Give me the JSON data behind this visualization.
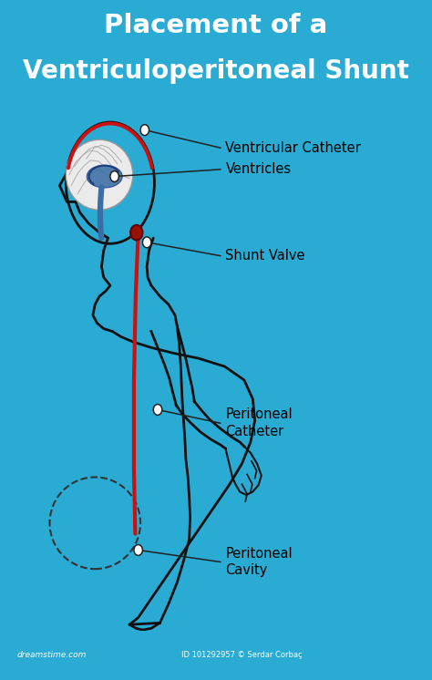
{
  "title_line1": "Placement of a",
  "title_line2": "Ventriculoperitoneal Shunt",
  "title_bg_color": "#29ABD4",
  "body_bg_color": "#FFFFFF",
  "footer_bg_color": "#1C7EAA",
  "footer_text": "dreamstime.com",
  "footer_id": "ID 101292957 © Serdar Corbaç",
  "title_font_color": "#FFFFFF",
  "title_fontsize": 21,
  "labels": {
    "ventricular_catheter": "Ventricular Catheter",
    "ventricles": "Ventricles",
    "shunt_valve": "Shunt Valve",
    "peritoneal_catheter": "Peritoneal\nCatheter",
    "peritoneal_cavity": "Peritoneal\nCavity"
  },
  "label_fontsize": 10.5,
  "line_color": "#111111",
  "red_catheter_color": "#CC1111",
  "blue_ventricle_color": "#3A6EA5",
  "body_outline_color": "#111111",
  "annotation_line_color": "#222222"
}
